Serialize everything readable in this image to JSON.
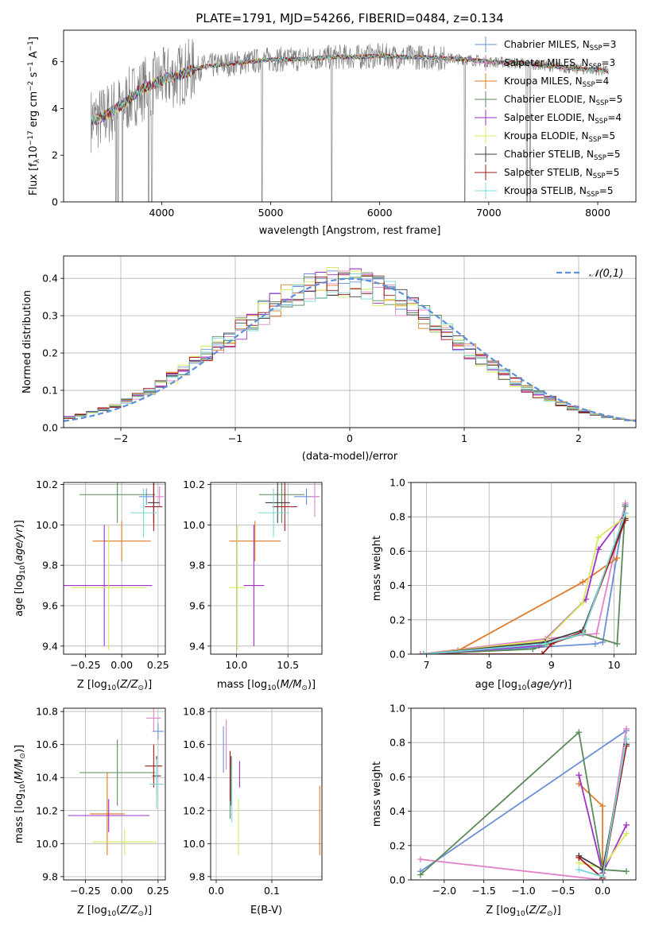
{
  "chart_data": [
    {
      "type": "line",
      "id": "spectrum",
      "title": "PLATE=1791, MJD=54266, FIBERID=0484, z=0.134",
      "xlabel": "wavelength [Angstrom, rest frame]",
      "ylabel": "Flux [f_λ 10^-17 erg cm^-2 s^-1 A^-1]",
      "xlim": [
        3100,
        8350
      ],
      "ylim": [
        0,
        7.35
      ],
      "xticks": [
        4000,
        5000,
        6000,
        7000,
        8000
      ],
      "yticks": [
        0,
        2,
        4,
        6
      ],
      "grid": false,
      "legend_position": "right",
      "data_color": "#808080",
      "data_envelope": {
        "x": [
          3350,
          3450,
          3550,
          3650,
          3750,
          3850,
          3950,
          4050,
          4150,
          4250,
          4400,
          4600,
          4800,
          5000,
          5200,
          5400,
          5600,
          5800,
          6000,
          6200,
          6400,
          6600,
          6800,
          7000,
          7200,
          7400,
          7600,
          7800,
          8000,
          8100
        ],
        "y": [
          3.5,
          3.6,
          3.9,
          4.2,
          4.6,
          4.9,
          5.1,
          5.3,
          5.4,
          5.6,
          5.8,
          5.9,
          6.0,
          6.1,
          6.1,
          6.15,
          6.2,
          6.2,
          6.25,
          6.2,
          6.2,
          6.15,
          6.1,
          6.0,
          5.95,
          5.9,
          5.8,
          5.7,
          5.65,
          5.6
        ]
      },
      "absorption_lines": [
        3580,
        3600,
        3640,
        3880,
        3910,
        4920,
        5560,
        6780,
        7350,
        7380
      ],
      "series": [
        {
          "label": "Chabrier MILES, N_SSP=3",
          "name_main": "Chabrier MILES, N",
          "sub": "SSP",
          "tail": "=3",
          "color": "#6a8fd8"
        },
        {
          "label": "Salpeter MILES, N_SSP=3",
          "name_main": "Salpeter MILES, N",
          "sub": "SSP",
          "tail": "=3",
          "color": "#e282c8"
        },
        {
          "label": "Kroupa MILES, N_SSP=4",
          "name_main": "Kroupa MILES, N",
          "sub": "SSP",
          "tail": "=4",
          "color": "#e07b28"
        },
        {
          "label": "Chabrier ELODIE, N_SSP=5",
          "name_main": "Chabrier ELODIE, N",
          "sub": "SSP",
          "tail": "=5",
          "color": "#5a8a5a"
        },
        {
          "label": "Salpeter ELODIE, N_SSP=4",
          "name_main": "Salpeter ELODIE, N",
          "sub": "SSP",
          "tail": "=4",
          "color": "#a030c8"
        },
        {
          "label": "Kroupa ELODIE, N_SSP=5",
          "name_main": "Kroupa ELODIE, N",
          "sub": "SSP",
          "tail": "=5",
          "color": "#d8e858"
        },
        {
          "label": "Chabrier STELIB, N_SSP=5",
          "name_main": "Chabrier STELIB, N",
          "sub": "SSP",
          "tail": "=5",
          "color": "#404040"
        },
        {
          "label": "Salpeter STELIB, N_SSP=5",
          "name_main": "Salpeter STELIB, N",
          "sub": "SSP",
          "tail": "=5",
          "color": "#a01818"
        },
        {
          "label": "Kroupa STELIB, N_SSP=5",
          "name_main": "Kroupa STELIB, N",
          "sub": "SSP",
          "tail": "=5",
          "color": "#78d8d8"
        }
      ]
    },
    {
      "type": "histogram",
      "id": "residuals",
      "xlabel": "(data-model)/error",
      "ylabel": "Normed distribution",
      "xlim": [
        -2.5,
        2.5
      ],
      "ylim": [
        0,
        0.46
      ],
      "xticks": [
        -2,
        -1,
        0,
        1,
        2
      ],
      "yticks": [
        0.0,
        0.1,
        0.2,
        0.3,
        0.4
      ],
      "grid": true,
      "legend_position": "top-right",
      "legend": "N(0,1)",
      "bin_width": 0.1,
      "gaussian_color": "#5b8fd9"
    },
    {
      "type": "errorbar",
      "id": "age-vs-Z",
      "xlabel": "Z [log10(Z/Z⊙)]",
      "ylabel": "age [log10(age/yr)]",
      "xlim": [
        -0.4,
        0.3
      ],
      "ylim": [
        9.36,
        10.21
      ],
      "xticks": [
        -0.25,
        0.0,
        0.25
      ],
      "yticks": [
        9.4,
        9.6,
        9.8,
        10.0,
        10.2
      ],
      "grid": true,
      "points": [
        {
          "s": 0,
          "x": 0.17,
          "y": 10.14,
          "xerr": 0.05,
          "yerr": 0.04
        },
        {
          "s": 1,
          "x": 0.26,
          "y": 10.14,
          "xerr": 0.03,
          "yerr": 0.05
        },
        {
          "s": 2,
          "x": 0.0,
          "y": 9.92,
          "xerr": 0.2,
          "yerr": 0.1
        },
        {
          "s": 3,
          "x": -0.03,
          "y": 10.15,
          "xerr": 0.26,
          "yerr": 0.14
        },
        {
          "s": 4,
          "x": -0.12,
          "y": 9.7,
          "xerr": 0.33,
          "yerr": 0.3
        },
        {
          "s": 5,
          "x": -0.09,
          "y": 9.69,
          "xerr": 0.26,
          "yerr": 0.31
        },
        {
          "s": 6,
          "x": 0.22,
          "y": 10.11,
          "xerr": 0.04,
          "yerr": 0.1
        },
        {
          "s": 7,
          "x": 0.22,
          "y": 10.09,
          "xerr": 0.06,
          "yerr": 0.12
        },
        {
          "s": 8,
          "x": 0.15,
          "y": 10.06,
          "xerr": 0.09,
          "yerr": 0.12
        }
      ]
    },
    {
      "type": "errorbar",
      "id": "age-vs-mass",
      "xlabel": "mass [log10(M/M⊙)]",
      "ylabel": "",
      "xlim": [
        9.75,
        10.83
      ],
      "ylim": [
        9.36,
        10.21
      ],
      "xticks": [
        10.0,
        10.5
      ],
      "yticks": [
        9.4,
        9.6,
        9.8,
        10.0,
        10.2
      ],
      "grid": true,
      "points": [
        {
          "s": 0,
          "x": 10.68,
          "y": 10.14,
          "xerr": 0.12,
          "yerr": 0.04
        },
        {
          "s": 1,
          "x": 10.76,
          "y": 10.14,
          "xerr": 0.05,
          "yerr": 0.1
        },
        {
          "s": 2,
          "x": 10.18,
          "y": 9.92,
          "xerr": 0.25,
          "yerr": 0.1
        },
        {
          "s": 3,
          "x": 10.44,
          "y": 10.15,
          "xerr": 0.22,
          "yerr": 0.14
        },
        {
          "s": 4,
          "x": 10.17,
          "y": 9.7,
          "xerr": 0.1,
          "yerr": 0.3
        },
        {
          "s": 5,
          "x": 10.01,
          "y": 9.69,
          "xerr": 0.08,
          "yerr": 0.31
        },
        {
          "s": 6,
          "x": 10.4,
          "y": 10.11,
          "xerr": 0.12,
          "yerr": 0.1
        },
        {
          "s": 7,
          "x": 10.47,
          "y": 10.09,
          "xerr": 0.12,
          "yerr": 0.12
        },
        {
          "s": 8,
          "x": 10.36,
          "y": 10.06,
          "xerr": 0.15,
          "yerr": 0.12
        }
      ]
    },
    {
      "type": "line",
      "id": "weight-vs-age",
      "xlabel": "age [log10(age/yr)]",
      "ylabel": "mass weight",
      "xlim": [
        6.75,
        10.35
      ],
      "ylim": [
        0,
        1.0
      ],
      "xticks": [
        7,
        8,
        9,
        10
      ],
      "yticks": [
        0.0,
        0.2,
        0.4,
        0.6,
        0.8,
        1.0
      ],
      "grid": true,
      "series": [
        {
          "s": 0,
          "x": [
            6.9,
            9.7,
            9.82,
            10.18
          ],
          "y": [
            0.0,
            0.06,
            0.07,
            0.87
          ]
        },
        {
          "s": 1,
          "x": [
            6.9,
            8.9,
            9.72,
            10.18
          ],
          "y": [
            0.0,
            0.09,
            0.12,
            0.88
          ]
        },
        {
          "s": 2,
          "x": [
            6.95,
            7.5,
            9.5,
            10.05
          ],
          "y": [
            0.0,
            0.02,
            0.42,
            0.56
          ]
        },
        {
          "s": 3,
          "x": [
            6.95,
            8.7,
            9.5,
            10.05,
            10.18
          ],
          "y": [
            0.0,
            0.03,
            0.12,
            0.06,
            0.86
          ]
        },
        {
          "s": 4,
          "x": [
            6.95,
            8.8,
            9.55,
            9.75,
            10.18
          ],
          "y": [
            0.0,
            0.05,
            0.32,
            0.61,
            0.82
          ]
        },
        {
          "s": 5,
          "x": [
            6.95,
            8.9,
            9.5,
            9.75,
            10.18
          ],
          "y": [
            0.0,
            0.08,
            0.3,
            0.68,
            0.8
          ]
        },
        {
          "s": 6,
          "x": [
            6.95,
            8.9,
            9.5,
            10.18
          ],
          "y": [
            0.0,
            0.07,
            0.14,
            0.79
          ]
        },
        {
          "s": 7,
          "x": [
            6.95,
            8.85,
            9.0,
            9.5,
            10.18
          ],
          "y": [
            0.0,
            0.0,
            0.06,
            0.13,
            0.78
          ]
        },
        {
          "s": 8,
          "x": [
            6.95,
            8.9,
            9.5,
            10.18
          ],
          "y": [
            0.0,
            0.06,
            0.12,
            0.82
          ]
        }
      ]
    },
    {
      "type": "errorbar",
      "id": "mass-vs-Z",
      "xlabel": "Z [log10(Z/Z⊙)]",
      "ylabel": "mass [log10(M/M⊙)]",
      "xlim": [
        -0.4,
        0.3
      ],
      "ylim": [
        9.78,
        10.82
      ],
      "xticks": [
        -0.25,
        0.0,
        0.25
      ],
      "yticks": [
        9.8,
        10.0,
        10.2,
        10.4,
        10.6,
        10.8
      ],
      "grid": true,
      "points": [
        {
          "s": 0,
          "x": 0.25,
          "y": 10.68,
          "xerr": 0.04,
          "yerr": 0.05
        },
        {
          "s": 1,
          "x": 0.22,
          "y": 10.76,
          "xerr": 0.05,
          "yerr": 0.08
        },
        {
          "s": 2,
          "x": -0.1,
          "y": 10.18,
          "xerr": 0.12,
          "yerr": 0.25
        },
        {
          "s": 3,
          "x": -0.03,
          "y": 10.43,
          "xerr": 0.26,
          "yerr": 0.2
        },
        {
          "s": 4,
          "x": -0.09,
          "y": 10.17,
          "xerr": 0.28,
          "yerr": 0.1
        },
        {
          "s": 5,
          "x": 0.02,
          "y": 10.01,
          "xerr": 0.22,
          "yerr": 0.08
        },
        {
          "s": 6,
          "x": 0.24,
          "y": 10.41,
          "xerr": 0.03,
          "yerr": 0.12
        },
        {
          "s": 7,
          "x": 0.22,
          "y": 10.47,
          "xerr": 0.06,
          "yerr": 0.13
        },
        {
          "s": 8,
          "x": 0.24,
          "y": 10.36,
          "xerr": 0.05,
          "yerr": 0.15
        }
      ]
    },
    {
      "type": "errorbar",
      "id": "mass-vs-ebv",
      "xlabel": "E(B-V)",
      "ylabel": "",
      "xlim": [
        -0.01,
        0.19
      ],
      "ylim": [
        9.78,
        10.82
      ],
      "xticks": [
        0.0,
        0.1
      ],
      "yticks": [
        9.8,
        10.0,
        10.2,
        10.4,
        10.6,
        10.8
      ],
      "grid": true,
      "points": [
        {
          "s": 0,
          "x": 0.013,
          "y": 10.57,
          "xerr": 0,
          "yerr": 0.14
        },
        {
          "s": 1,
          "x": 0.018,
          "y": 10.6,
          "xerr": 0,
          "yerr": 0.15
        },
        {
          "s": 2,
          "x": 0.186,
          "y": 10.14,
          "xerr": 0,
          "yerr": 0.21
        },
        {
          "s": 3,
          "x": 0.025,
          "y": 10.35,
          "xerr": 0,
          "yerr": 0.2
        },
        {
          "s": 4,
          "x": 0.042,
          "y": 10.42,
          "xerr": 0,
          "yerr": 0.08
        },
        {
          "s": 5,
          "x": 0.04,
          "y": 10.1,
          "xerr": 0,
          "yerr": 0.17
        },
        {
          "s": 6,
          "x": 0.027,
          "y": 10.38,
          "xerr": 0,
          "yerr": 0.15
        },
        {
          "s": 7,
          "x": 0.025,
          "y": 10.41,
          "xerr": 0,
          "yerr": 0.15
        },
        {
          "s": 8,
          "x": 0.028,
          "y": 10.3,
          "xerr": 0,
          "yerr": 0.17
        }
      ]
    },
    {
      "type": "line",
      "id": "weight-vs-Z",
      "xlabel": "Z [log10(Z/Z⊙)]",
      "ylabel": "mass weight",
      "xlim": [
        -2.42,
        0.42
      ],
      "ylim": [
        0,
        1.0
      ],
      "xticks": [
        -2.0,
        -1.5,
        -1.0,
        -0.5,
        0.0
      ],
      "yticks": [
        0.0,
        0.2,
        0.4,
        0.6,
        0.8,
        1.0
      ],
      "grid": true,
      "series": [
        {
          "s": 0,
          "x": [
            -2.3,
            0.3
          ],
          "y": [
            0.05,
            0.87
          ]
        },
        {
          "s": 1,
          "x": [
            -2.3,
            0.0,
            0.3
          ],
          "y": [
            0.12,
            0.0,
            0.88
          ]
        },
        {
          "s": 2,
          "x": [
            -0.3,
            0.0,
            0.0
          ],
          "y": [
            0.56,
            0.43,
            0.01
          ]
        },
        {
          "s": 3,
          "x": [
            -2.3,
            -0.3,
            0.0,
            0.3
          ],
          "y": [
            0.03,
            0.86,
            0.06,
            0.05
          ]
        },
        {
          "s": 4,
          "x": [
            -0.3,
            0.0,
            0.3
          ],
          "y": [
            0.61,
            0.04,
            0.32
          ]
        },
        {
          "s": 5,
          "x": [
            -0.3,
            0.0,
            0.3
          ],
          "y": [
            0.1,
            0.07,
            0.27
          ]
        },
        {
          "s": 6,
          "x": [
            -0.3,
            0.0,
            0.3
          ],
          "y": [
            0.14,
            0.06,
            0.79
          ]
        },
        {
          "s": 7,
          "x": [
            -0.3,
            0.0,
            0.3
          ],
          "y": [
            0.13,
            0.01,
            0.78
          ]
        },
        {
          "s": 8,
          "x": [
            -0.3,
            0.0,
            0.3
          ],
          "y": [
            0.06,
            0.02,
            0.82
          ]
        }
      ]
    }
  ]
}
